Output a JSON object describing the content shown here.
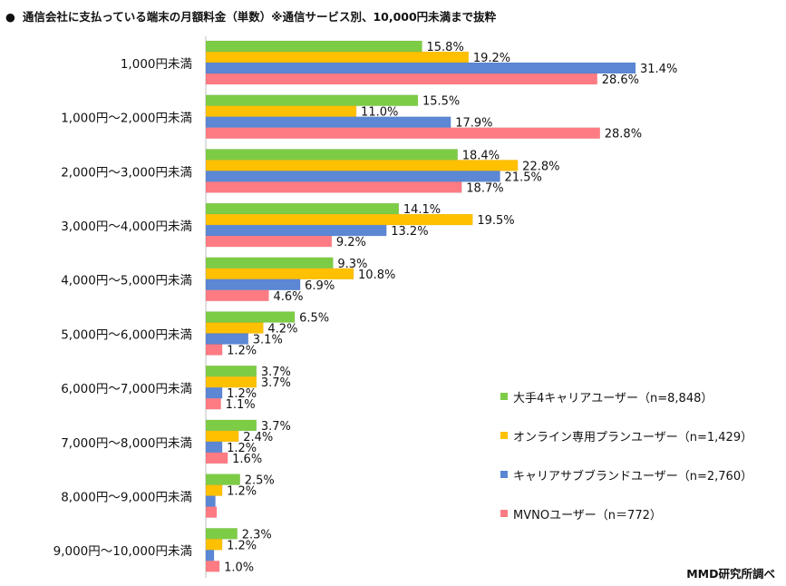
{
  "title": "通信会社に支払っている端末の月額料金（単数）※通信サービス別、10,000円未満まで抜粋",
  "title_bullet": "●",
  "credit": "MMD研究所調べ",
  "colors": {
    "series1": "#7dcc45",
    "series2": "#ffc000",
    "series3": "#5b87d4",
    "series4": "#ff7b84",
    "axis": "#bfbfbf"
  },
  "chart_data": {
    "type": "bar",
    "orientation": "horizontal",
    "title": "通信会社に支払っている端末の月額料金（単数）※通信サービス別、10,000円未満まで抜粋",
    "categories": [
      "1,000円未満",
      "1,000円～2,000円未満",
      "2,000円～3,000円未満",
      "3,000円～4,000円未満",
      "4,000円～5,000円未満",
      "5,000円～6,000円未満",
      "6,000円～7,000円未満",
      "7,000円～8,000円未満",
      "8,000円～9,000円未満",
      "9,000円～10,000円未満"
    ],
    "series": [
      {
        "name": "大手4キャリアユーザー（n=8,848）",
        "values": [
          15.8,
          15.5,
          18.4,
          14.1,
          9.3,
          6.5,
          3.7,
          3.7,
          2.5,
          2.3
        ]
      },
      {
        "name": "オンライン専用プランユーザー（n=1,429）",
        "values": [
          19.2,
          11.0,
          22.8,
          19.5,
          10.8,
          4.2,
          3.7,
          2.4,
          1.2,
          1.2
        ]
      },
      {
        "name": "キャリアサブブランドユーザー（n=2,760）",
        "values": [
          31.4,
          17.9,
          21.5,
          13.2,
          6.9,
          3.1,
          1.2,
          1.2,
          0.7,
          0.6
        ]
      },
      {
        "name": "MVNOユーザー（n＝772）",
        "values": [
          28.6,
          28.8,
          18.7,
          9.2,
          4.6,
          1.2,
          1.1,
          1.6,
          0.8,
          1.0
        ]
      }
    ],
    "value_labels": [
      [
        "15.8%",
        "15.5%",
        "18.4%",
        "14.1%",
        "9.3%",
        "6.5%",
        "3.7%",
        "3.7%",
        "2.5%",
        "2.3%"
      ],
      [
        "19.2%",
        "11.0%",
        "22.8%",
        "19.5%",
        "10.8%",
        "4.2%",
        "3.7%",
        "2.4%",
        "1.2%",
        "1.2%"
      ],
      [
        "31.4%",
        "17.9%",
        "21.5%",
        "13.2%",
        "6.9%",
        "3.1%",
        "1.2%",
        "1.2%",
        "",
        ""
      ],
      [
        "28.6%",
        "28.8%",
        "18.7%",
        "9.2%",
        "4.6%",
        "1.2%",
        "1.1%",
        "1.6%",
        "",
        "1.0%"
      ]
    ],
    "xlim": [
      0,
      34
    ],
    "grid": false,
    "legend_position": "bottom-right"
  }
}
